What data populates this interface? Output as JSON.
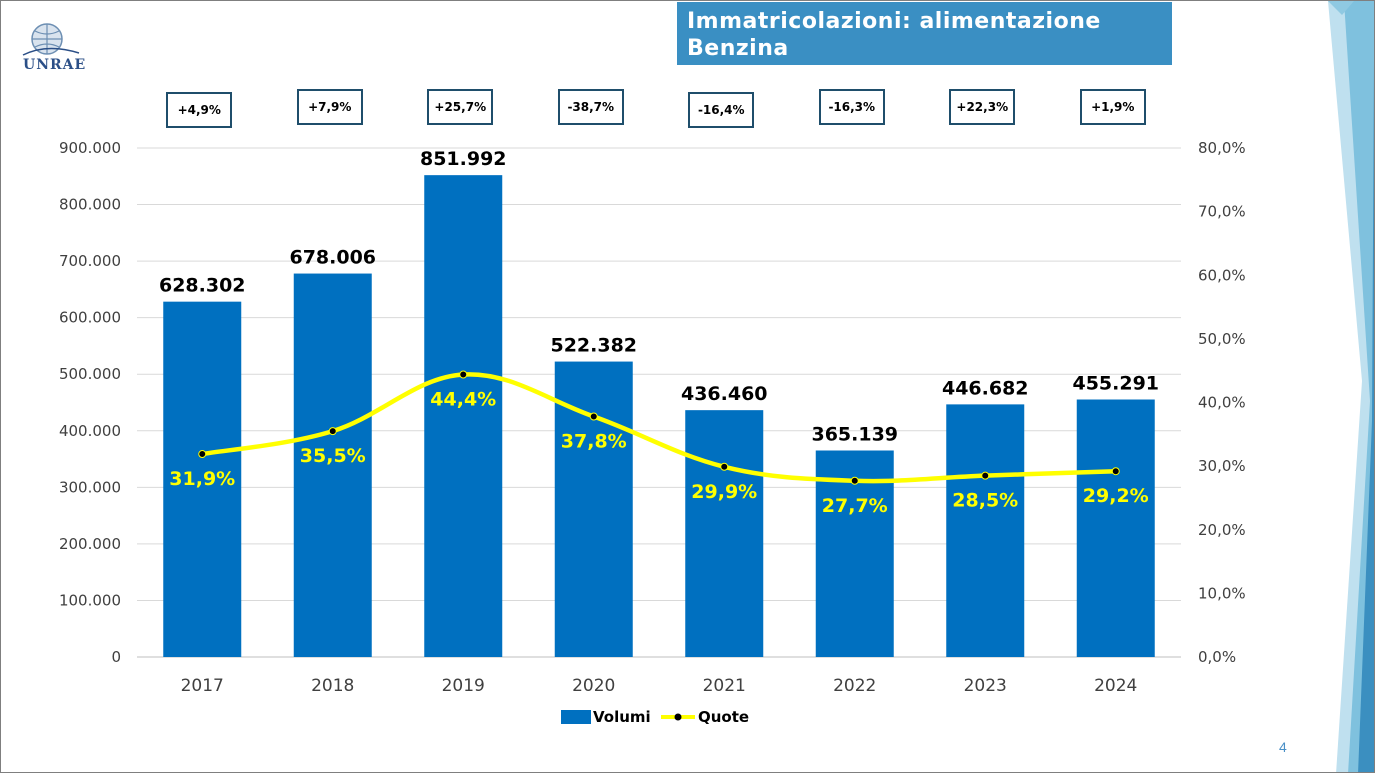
{
  "slide": {
    "title": "Immatricolazioni: alimentazione Benzina",
    "logo_text": "UNRAE",
    "page_number": "4",
    "changes": [
      "+4,9%",
      "+7,9%",
      "+25,7%",
      "-38,7%",
      "-16,4%",
      "-16,3%",
      "+22,3%",
      "+1,9%"
    ]
  },
  "colors": {
    "bar": "#0070c0",
    "line": "#ffff00",
    "title_bg": "#3a8fc3",
    "box_border": "#1f4e6b"
  },
  "chart_data": {
    "type": "bar",
    "categories": [
      "2017",
      "2018",
      "2019",
      "2020",
      "2021",
      "2022",
      "2023",
      "2024"
    ],
    "series": [
      {
        "name": "Volumi",
        "type": "bar",
        "axis": "left",
        "values": [
          628302,
          678006,
          851992,
          522382,
          436460,
          365139,
          446682,
          455291
        ],
        "labels": [
          "628.302",
          "678.006",
          "851.992",
          "522.382",
          "436.460",
          "365.139",
          "446.682",
          "455.291"
        ]
      },
      {
        "name": "Quote",
        "type": "line",
        "axis": "right",
        "values": [
          31.9,
          35.5,
          44.4,
          37.8,
          29.9,
          27.7,
          28.5,
          29.2
        ],
        "labels": [
          "31,9%",
          "35,5%",
          "44,4%",
          "37,8%",
          "29,9%",
          "27,7%",
          "28,5%",
          "29,2%"
        ]
      }
    ],
    "ylim": [
      0,
      900000
    ],
    "y_ticks": [
      "0",
      "100.000",
      "200.000",
      "300.000",
      "400.000",
      "500.000",
      "600.000",
      "700.000",
      "800.000",
      "900.000"
    ],
    "y2lim": [
      0,
      80
    ],
    "y2_ticks": [
      "0,0%",
      "10,0%",
      "20,0%",
      "30,0%",
      "40,0%",
      "50,0%",
      "60,0%",
      "70,0%",
      "80,0%"
    ],
    "grid": true,
    "legend": "bottom"
  }
}
